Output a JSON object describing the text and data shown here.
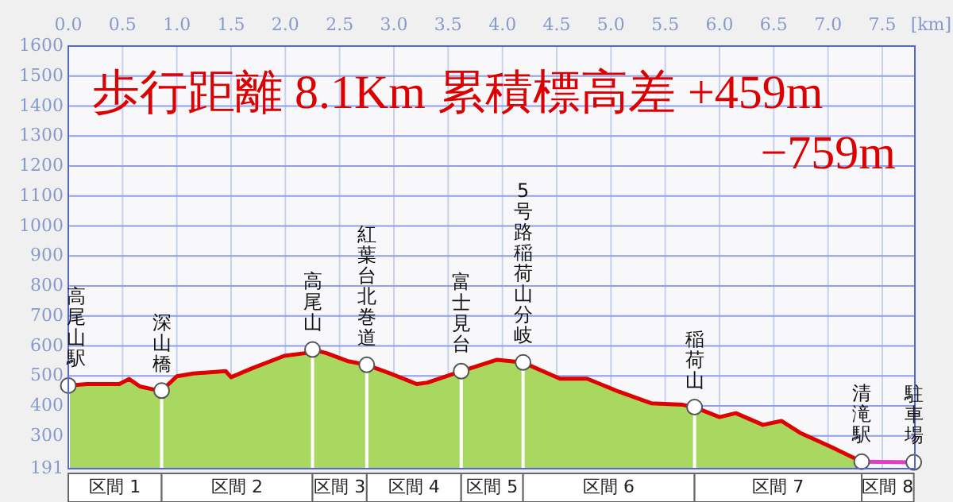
{
  "chart_data": {
    "type": "area",
    "xlabel": "[km]",
    "xlim": [
      0,
      7.8
    ],
    "xticks": [
      {
        "value": 0,
        "label": "0.0"
      },
      {
        "value": 0.5,
        "label": "0.5"
      },
      {
        "value": 1,
        "label": "1.0"
      },
      {
        "value": 1.5,
        "label": "1.5"
      },
      {
        "value": 2,
        "label": "2.0"
      },
      {
        "value": 2.5,
        "label": "2.5"
      },
      {
        "value": 3,
        "label": "3.0"
      },
      {
        "value": 3.5,
        "label": "3.5"
      },
      {
        "value": 4,
        "label": "4.0"
      },
      {
        "value": 4.5,
        "label": "4.5"
      },
      {
        "value": 5,
        "label": "5.0"
      },
      {
        "value": 5.5,
        "label": "5.5"
      },
      {
        "value": 6,
        "label": "6.0"
      },
      {
        "value": 6.5,
        "label": "6.5"
      },
      {
        "value": 7,
        "label": "7.0"
      },
      {
        "value": 7.5,
        "label": "7.5"
      }
    ],
    "ylim": [
      191,
      1600
    ],
    "yticks": [
      191,
      300,
      400,
      500,
      600,
      700,
      800,
      900,
      1000,
      1100,
      1200,
      1300,
      1400,
      1500,
      1600
    ],
    "grid": true,
    "ref_lines": [
      {
        "axis": "x",
        "value": 0,
        "color": "#ffffff"
      },
      {
        "axis": "x",
        "value": 0.86,
        "color": "#ffffff"
      },
      {
        "axis": "x",
        "value": 2.25,
        "color": "#ffffff"
      },
      {
        "axis": "x",
        "value": 2.75,
        "color": "#ffffff"
      },
      {
        "axis": "x",
        "value": 3.62,
        "color": "#ffffff"
      },
      {
        "axis": "x",
        "value": 4.19,
        "color": "#ffffff"
      },
      {
        "axis": "x",
        "value": 5.77,
        "color": "#ffffff"
      }
    ],
    "annotations": [
      "歩行距離  8.1Km    累積標高差  +459m",
      "−759m",
      {
        "text": "高尾山駅",
        "x": 0,
        "y": 468
      },
      {
        "text": "深山橋",
        "x": 0.86,
        "y": 451
      },
      {
        "text": "高尾山",
        "x": 2.25,
        "y": 588
      },
      {
        "text": "紅葉台北巻道",
        "x": 2.75,
        "y": 537
      },
      {
        "text": "富士見台",
        "x": 3.62,
        "y": 516
      },
      {
        "text": "5号路稲荷山分岐",
        "x": 4.19,
        "y": 545
      },
      {
        "text": "稲荷山",
        "x": 5.77,
        "y": 396
      },
      {
        "text": "清滝駅",
        "x": 7.31,
        "y": 214
      },
      {
        "text": "駐車場",
        "x": 7.79,
        "y": 212
      },
      "区間 1",
      "区間 2",
      "区間 3",
      "区間 4",
      "区間 5",
      "区間 6",
      "区間 7",
      "区間 8"
    ],
    "series": [
      {
        "color": "#a8d860",
        "x": [
          0,
          0.17,
          0.47,
          0.56,
          0.66,
          0.81,
          0.86,
          1.0,
          1.15,
          1.45,
          1.5,
          1.69,
          1.99,
          2.18,
          2.25,
          2.38,
          2.57,
          2.75,
          2.97,
          3.21,
          3.31,
          3.62,
          3.95,
          4.19,
          4.53,
          4.78,
          5.07,
          5.37,
          5.66,
          5.77,
          6.0,
          6.15,
          6.4,
          6.57,
          6.74,
          7.03,
          7.31
        ],
        "values": [
          468,
          473,
          473,
          490,
          465,
          453,
          451,
          499,
          508,
          516,
          496,
          525,
          567,
          576,
          588,
          576,
          550,
          537,
          508,
          473,
          478,
          516,
          554,
          545,
          491,
          491,
          448,
          409,
          404,
          396,
          363,
          376,
          337,
          350,
          311,
          263,
          214
        ]
      },
      {
        "type": "line",
        "color": "#e00000",
        "x": [
          0,
          0.17,
          0.47,
          0.56,
          0.66,
          0.81,
          0.86,
          1.0,
          1.15,
          1.45,
          1.5,
          1.69,
          1.99,
          2.18,
          2.25,
          2.38,
          2.57,
          2.75,
          2.97,
          3.21,
          3.31,
          3.62,
          3.95,
          4.19,
          4.53,
          4.78,
          5.07,
          5.37,
          5.66,
          5.77,
          6.0,
          6.15,
          6.4,
          6.57,
          6.74,
          7.03,
          7.31
        ],
        "values": [
          468,
          473,
          473,
          490,
          465,
          453,
          451,
          499,
          508,
          516,
          496,
          525,
          567,
          576,
          588,
          576,
          550,
          537,
          508,
          473,
          478,
          516,
          554,
          545,
          491,
          491,
          448,
          409,
          404,
          396,
          363,
          376,
          337,
          350,
          311,
          263,
          214
        ]
      },
      {
        "type": "line",
        "color": "#e040c0",
        "x": [
          7.31,
          7.79
        ],
        "values": [
          214,
          212
        ]
      },
      {
        "type": "scatter",
        "color": "#ffffff",
        "marker": "circle",
        "x": [
          0,
          0.86,
          2.25,
          2.75,
          3.62,
          4.19,
          5.77,
          7.31,
          7.79
        ],
        "values": [
          468,
          451,
          588,
          537,
          516,
          545,
          396,
          214,
          212
        ]
      }
    ]
  }
}
